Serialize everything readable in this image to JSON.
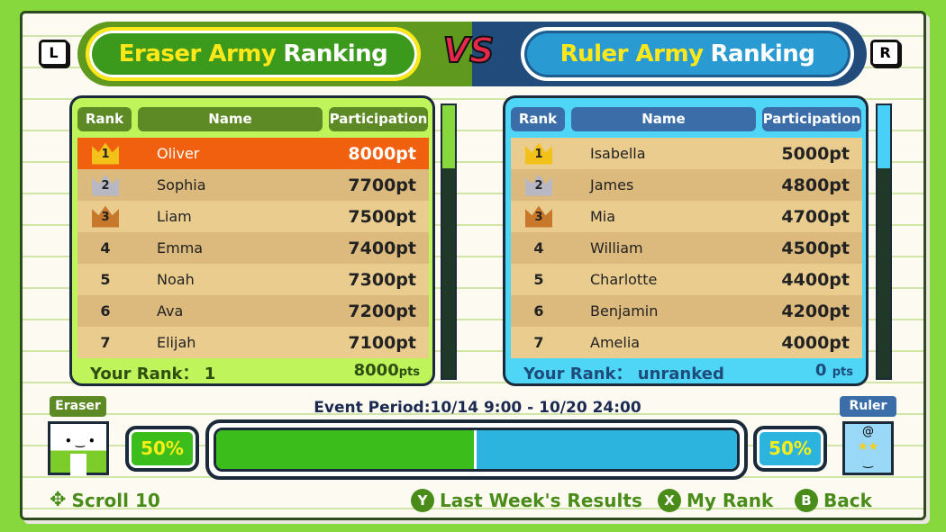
{
  "header": {
    "left_key": "L",
    "right_key": "R",
    "vs": "VS",
    "eraser_title": {
      "a": "Eraser Army",
      "b": "Ranking"
    },
    "ruler_title": {
      "a": "Ruler Army",
      "b": "Ranking"
    }
  },
  "columns": {
    "rank": "Rank",
    "name": "Name",
    "participation": "Participation"
  },
  "eraser": {
    "rows": [
      {
        "rank": "1",
        "name": "Oliver",
        "pts": "8000pt"
      },
      {
        "rank": "2",
        "name": "Sophia",
        "pts": "7700pt"
      },
      {
        "rank": "3",
        "name": "Liam",
        "pts": "7500pt"
      },
      {
        "rank": "4",
        "name": "Emma",
        "pts": "7400pt"
      },
      {
        "rank": "5",
        "name": "Noah",
        "pts": "7300pt"
      },
      {
        "rank": "6",
        "name": "Ava",
        "pts": "7200pt"
      },
      {
        "rank": "7",
        "name": "Elijah",
        "pts": "7100pt"
      }
    ],
    "your_rank_label": "Your Rank：",
    "your_rank": "1",
    "your_pts": "8000",
    "pts_unit": "pts",
    "label": "Eraser",
    "percent": "50%"
  },
  "ruler": {
    "rows": [
      {
        "rank": "1",
        "name": "Isabella",
        "pts": "5000pt"
      },
      {
        "rank": "2",
        "name": "James",
        "pts": "4800pt"
      },
      {
        "rank": "3",
        "name": "Mia",
        "pts": "4700pt"
      },
      {
        "rank": "4",
        "name": "William",
        "pts": "4500pt"
      },
      {
        "rank": "5",
        "name": "Charlotte",
        "pts": "4400pt"
      },
      {
        "rank": "6",
        "name": "Benjamin",
        "pts": "4200pt"
      },
      {
        "rank": "7",
        "name": "Amelia",
        "pts": "4000pt"
      }
    ],
    "your_rank_label": "Your Rank：",
    "your_rank": "unranked",
    "your_pts": "0",
    "pts_unit": "pts",
    "label": "Ruler",
    "percent": "50%"
  },
  "event_period": "Event Period:10/14 9:00 - 10/20 24:00",
  "balance": {
    "eraser_fraction": 0.5
  },
  "colors": {
    "eraser": "#3bbd1c",
    "ruler": "#2cb4de",
    "highlight": "#f0600e",
    "gold": "#f2c21a",
    "silver": "#b8b8c4",
    "bronze": "#c8782a"
  },
  "footer": {
    "scroll": "Scroll 10",
    "y_btn": "Y",
    "last_week": "Last Week's Results",
    "x_btn": "X",
    "my_rank": "My Rank",
    "b_btn": "B",
    "back": "Back"
  }
}
